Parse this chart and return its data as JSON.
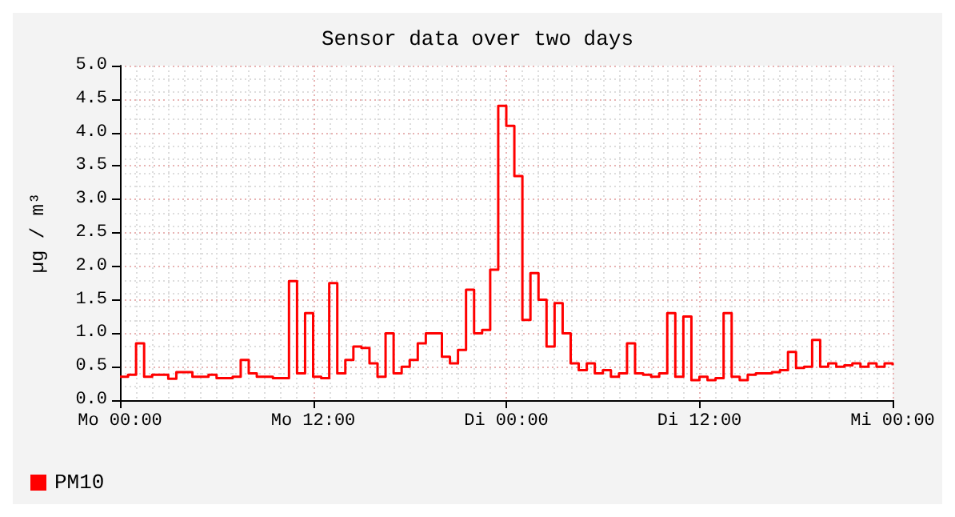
{
  "chart_data": {
    "type": "step",
    "title": "Sensor data over two days",
    "ylabel": "µg / m³",
    "categories": [
      "Mo 00:00",
      null,
      null,
      null,
      null,
      null,
      null,
      null,
      null,
      null,
      null,
      null,
      null,
      null,
      null,
      null,
      null,
      null,
      null,
      null,
      null,
      null,
      null,
      null,
      "Mo 12:00",
      null,
      null,
      null,
      null,
      null,
      null,
      null,
      null,
      null,
      null,
      null,
      null,
      null,
      null,
      null,
      null,
      null,
      null,
      null,
      null,
      null,
      null,
      null,
      "Di 00:00",
      null,
      null,
      null,
      null,
      null,
      null,
      null,
      null,
      null,
      null,
      null,
      null,
      null,
      null,
      null,
      null,
      null,
      null,
      null,
      null,
      null,
      null,
      null,
      "Di 12:00",
      null,
      null,
      null,
      null,
      null,
      null,
      null,
      null,
      null,
      null,
      null,
      null,
      null,
      null,
      null,
      null,
      null,
      null,
      null,
      null,
      null,
      null,
      null,
      "Mi 00:00"
    ],
    "ylim": [
      0,
      5
    ],
    "yticks": [
      {
        "value": 0,
        "label": "0.0"
      },
      {
        "value": 0.5,
        "label": "0.5"
      },
      {
        "value": 1,
        "label": "1.0"
      },
      {
        "value": 1.5,
        "label": "1.5"
      },
      {
        "value": 2,
        "label": "2.0"
      },
      {
        "value": 2.5,
        "label": "2.5"
      },
      {
        "value": 3,
        "label": "3.0"
      },
      {
        "value": 3.5,
        "label": "3.5"
      },
      {
        "value": 4,
        "label": "4.0"
      },
      {
        "value": 4.5,
        "label": "4.5"
      },
      {
        "value": 5,
        "label": "5.0"
      }
    ],
    "grid": true,
    "legend": "bottom left",
    "marker": "none",
    "line_style": "solid",
    "series": [
      {
        "name": "PM10",
        "color": "#ff0000",
        "values": [
          0.35,
          0.38,
          0.85,
          0.35,
          0.38,
          0.38,
          0.32,
          0.42,
          0.42,
          0.35,
          0.35,
          0.38,
          0.33,
          0.33,
          0.35,
          0.6,
          0.4,
          0.35,
          0.35,
          0.33,
          0.33,
          1.78,
          0.4,
          1.3,
          0.35,
          0.33,
          1.75,
          0.4,
          0.6,
          0.8,
          0.78,
          0.55,
          0.35,
          1.0,
          0.4,
          0.5,
          0.6,
          0.85,
          1.0,
          1.0,
          0.65,
          0.55,
          0.75,
          1.65,
          1.0,
          1.05,
          1.95,
          4.4,
          4.1,
          3.35,
          1.2,
          1.9,
          1.5,
          0.8,
          1.45,
          1.0,
          0.55,
          0.45,
          0.55,
          0.4,
          0.45,
          0.35,
          0.4,
          0.85,
          0.4,
          0.38,
          0.35,
          0.4,
          1.3,
          0.35,
          1.25,
          0.3,
          0.35,
          0.3,
          0.33,
          1.3,
          0.35,
          0.3,
          0.38,
          0.4,
          0.4,
          0.42,
          0.45,
          0.72,
          0.48,
          0.5,
          0.9,
          0.5,
          0.55,
          0.5,
          0.52,
          0.55,
          0.5,
          0.55,
          0.5,
          0.55,
          0.52
        ]
      }
    ]
  }
}
